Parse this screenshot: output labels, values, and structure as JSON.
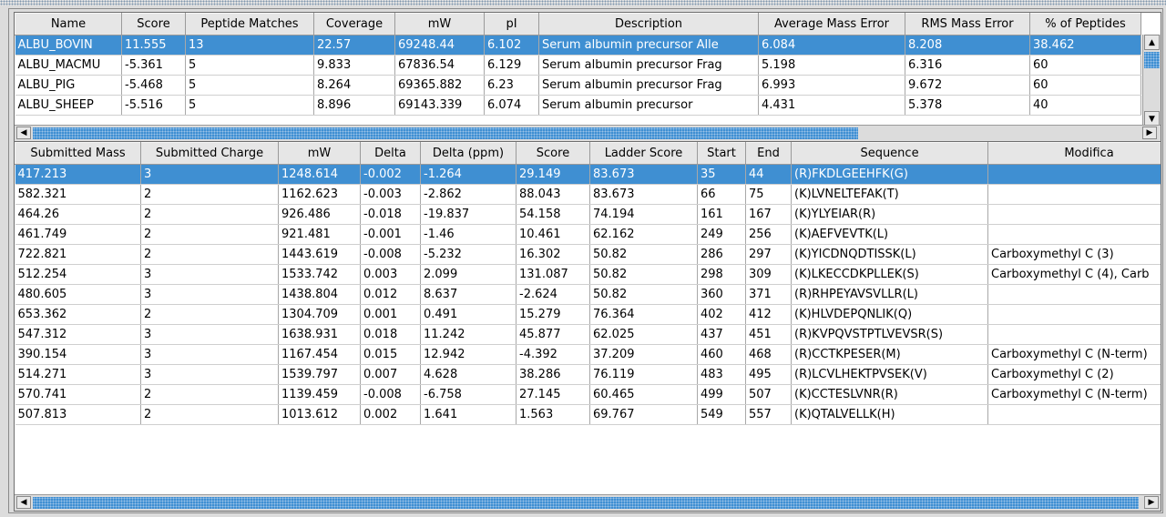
{
  "colors": {
    "selection": "#3f8fd2",
    "header_bg": "#e6e6e6"
  },
  "protein_table": {
    "columns": [
      "Name",
      "Score",
      "Peptide Matches",
      "Coverage",
      "mW",
      "pI",
      "Description",
      "Average Mass Error",
      "RMS Mass Error",
      "% of Peptides"
    ],
    "rows": [
      [
        "ALBU_BOVIN",
        "11.555",
        "13",
        "22.57",
        "69248.44",
        "6.102",
        "Serum albumin precursor  Alle",
        "6.084",
        "8.208",
        "38.462"
      ],
      [
        "ALBU_MACMU",
        "-5.361",
        "5",
        "9.833",
        "67836.54",
        "6.129",
        "Serum albumin precursor  Frag",
        "5.198",
        "6.316",
        "60"
      ],
      [
        "ALBU_PIG",
        "-5.468",
        "5",
        "8.264",
        "69365.882",
        "6.23",
        "Serum albumin precursor  Frag",
        "6.993",
        "9.672",
        "60"
      ],
      [
        "ALBU_SHEEP",
        "-5.516",
        "5",
        "8.896",
        "69143.339",
        "6.074",
        "Serum albumin precursor",
        "4.431",
        "5.378",
        "40"
      ]
    ],
    "selected_row": 0
  },
  "peptide_table": {
    "columns": [
      "Submitted Mass",
      "Submitted Charge",
      "mW",
      "Delta",
      "Delta (ppm)",
      "Score",
      "Ladder Score",
      "Start",
      "End",
      "Sequence",
      "Modifica"
    ],
    "rows": [
      [
        "417.213",
        "3",
        "1248.614",
        "-0.002",
        "-1.264",
        "29.149",
        "83.673",
        "35",
        "44",
        "(R)FKDLGEEHFK(G)",
        ""
      ],
      [
        "582.321",
        "2",
        "1162.623",
        "-0.003",
        "-2.862",
        "88.043",
        "83.673",
        "66",
        "75",
        "(K)LVNELTEFAK(T)",
        ""
      ],
      [
        "464.26",
        "2",
        "926.486",
        "-0.018",
        "-19.837",
        "54.158",
        "74.194",
        "161",
        "167",
        "(K)YLYEIAR(R)",
        ""
      ],
      [
        "461.749",
        "2",
        "921.481",
        "-0.001",
        "-1.46",
        "10.461",
        "62.162",
        "249",
        "256",
        "(K)AEFVEVTK(L)",
        ""
      ],
      [
        "722.821",
        "2",
        "1443.619",
        "-0.008",
        "-5.232",
        "16.302",
        "50.82",
        "286",
        "297",
        "(K)YICDNQDTISSK(L)",
        "Carboxymethyl C (3)"
      ],
      [
        "512.254",
        "3",
        "1533.742",
        "0.003",
        "2.099",
        "131.087",
        "50.82",
        "298",
        "309",
        "(K)LKECCDKPLLEK(S)",
        "Carboxymethyl C (4), Carb"
      ],
      [
        "480.605",
        "3",
        "1438.804",
        "0.012",
        "8.637",
        "-2.624",
        "50.82",
        "360",
        "371",
        "(R)RHPEYAVSVLLR(L)",
        ""
      ],
      [
        "653.362",
        "2",
        "1304.709",
        "0.001",
        "0.491",
        "15.279",
        "76.364",
        "402",
        "412",
        "(K)HLVDEPQNLIK(Q)",
        ""
      ],
      [
        "547.312",
        "3",
        "1638.931",
        "0.018",
        "11.242",
        "45.877",
        "62.025",
        "437",
        "451",
        "(R)KVPQVSTPTLVEVSR(S)",
        ""
      ],
      [
        "390.154",
        "3",
        "1167.454",
        "0.015",
        "12.942",
        "-4.392",
        "37.209",
        "460",
        "468",
        "(R)CCTKPESER(M)",
        "Carboxymethyl C (N-term)"
      ],
      [
        "514.271",
        "3",
        "1539.797",
        "0.007",
        "4.628",
        "38.286",
        "76.119",
        "483",
        "495",
        "(R)LCVLHEKTPVSEK(V)",
        "Carboxymethyl C (2)"
      ],
      [
        "570.741",
        "2",
        "1139.459",
        "-0.008",
        "-6.758",
        "27.145",
        "60.465",
        "499",
        "507",
        "(K)CCTESLVNR(R)",
        "Carboxymethyl C (N-term)"
      ],
      [
        "507.813",
        "2",
        "1013.612",
        "0.002",
        "1.641",
        "1.563",
        "69.767",
        "549",
        "557",
        "(K)QTALVELLK(H)",
        ""
      ]
    ],
    "selected_row": 0
  },
  "icons": {
    "scroll_up": "arrow-up-icon",
    "scroll_down": "arrow-down-icon",
    "scroll_left": "arrow-left-icon",
    "scroll_right": "arrow-right-icon"
  }
}
